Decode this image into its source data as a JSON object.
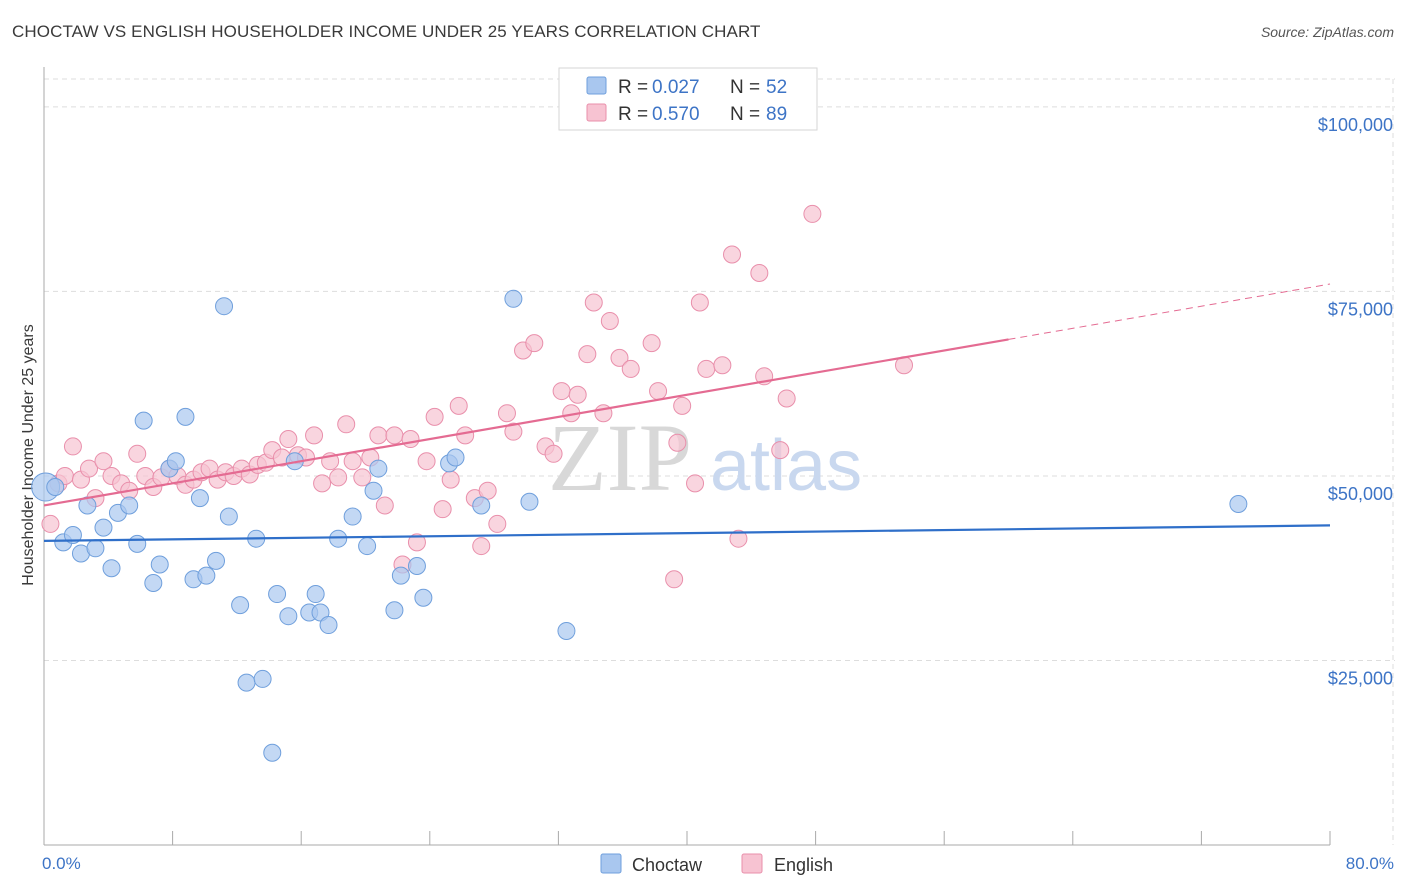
{
  "header": {
    "title": "CHOCTAW VS ENGLISH HOUSEHOLDER INCOME UNDER 25 YEARS CORRELATION CHART",
    "source": "Source: ZipAtlas.com"
  },
  "watermark": {
    "part1": "ZIP",
    "part2": "atlas"
  },
  "colors": {
    "choctaw_fill": "#a9c7ef",
    "choctaw_stroke": "#6f9fdc",
    "choctaw_line": "#2f6fc9",
    "english_fill": "#f7c3d2",
    "english_stroke": "#e98fab",
    "english_line": "#e46b92",
    "axis_text": "#3d74c6",
    "grid": "#dddddd"
  },
  "legend": {
    "rows": [
      {
        "r_label": "R =",
        "r_value": "0.027",
        "n_label": "N =",
        "n_value": "52"
      },
      {
        "r_label": "R =",
        "r_value": "0.570",
        "n_label": "N =",
        "n_value": "89"
      }
    ]
  },
  "chart_data": {
    "type": "scatter",
    "title": "CHOCTAW VS ENGLISH HOUSEHOLDER INCOME UNDER 25 YEARS CORRELATION CHART",
    "xlabel": "",
    "ylabel": "Householder Income Under 25 years",
    "xlim": [
      0,
      80
    ],
    "ylim": [
      0,
      105000
    ],
    "x_tick_labels": [
      "0.0%",
      "80.0%"
    ],
    "y_ticks": [
      25000,
      50000,
      75000,
      100000
    ],
    "y_tick_labels": [
      "$25,000",
      "$50,000",
      "$75,000",
      "$100,000"
    ],
    "grid": true,
    "series": [
      {
        "name": "Choctaw",
        "r": 0.027,
        "n": 52,
        "trend": {
          "x": [
            0,
            80
          ],
          "y": [
            41200,
            43300
          ]
        },
        "points": [
          [
            0.1,
            48500
          ],
          [
            0.7,
            48500
          ],
          [
            1.2,
            41000
          ],
          [
            1.8,
            42000
          ],
          [
            2.3,
            39500
          ],
          [
            2.7,
            46000
          ],
          [
            3.2,
            40200
          ],
          [
            3.7,
            43000
          ],
          [
            4.2,
            37500
          ],
          [
            4.6,
            45000
          ],
          [
            5.3,
            46000
          ],
          [
            5.8,
            40800
          ],
          [
            6.2,
            57500
          ],
          [
            6.8,
            35500
          ],
          [
            7.2,
            38000
          ],
          [
            7.8,
            51000
          ],
          [
            8.2,
            52000
          ],
          [
            8.8,
            58000
          ],
          [
            9.3,
            36000
          ],
          [
            9.7,
            47000
          ],
          [
            10.1,
            36500
          ],
          [
            10.7,
            38500
          ],
          [
            11.5,
            44500
          ],
          [
            11.2,
            73000
          ],
          [
            12.2,
            32500
          ],
          [
            12.6,
            22000
          ],
          [
            13.2,
            41500
          ],
          [
            13.6,
            22500
          ],
          [
            14.2,
            12500
          ],
          [
            14.5,
            34000
          ],
          [
            15.2,
            31000
          ],
          [
            15.6,
            52000
          ],
          [
            16.5,
            31500
          ],
          [
            16.9,
            34000
          ],
          [
            17.2,
            31500
          ],
          [
            17.7,
            29800
          ],
          [
            18.3,
            41500
          ],
          [
            19.2,
            44500
          ],
          [
            20.1,
            40500
          ],
          [
            20.5,
            48000
          ],
          [
            20.8,
            51000
          ],
          [
            21.8,
            31800
          ],
          [
            22.2,
            36500
          ],
          [
            23.2,
            37800
          ],
          [
            23.6,
            33500
          ],
          [
            25.2,
            51700
          ],
          [
            25.6,
            52500
          ],
          [
            27.2,
            46000
          ],
          [
            29.2,
            74000
          ],
          [
            30.2,
            46500
          ],
          [
            32.5,
            29000
          ],
          [
            74.3,
            46200
          ]
        ]
      },
      {
        "name": "English",
        "r": 0.57,
        "n": 89,
        "trend": {
          "x": [
            0,
            60
          ],
          "y": [
            46000,
            68500
          ],
          "dashed_x": [
            60,
            80
          ],
          "dashed_y": [
            68500,
            76000
          ]
        },
        "points": [
          [
            0.4,
            43500
          ],
          [
            0.9,
            49000
          ],
          [
            1.3,
            50000
          ],
          [
            1.8,
            54000
          ],
          [
            2.3,
            49500
          ],
          [
            2.8,
            51000
          ],
          [
            3.2,
            47000
          ],
          [
            3.7,
            52000
          ],
          [
            4.2,
            50000
          ],
          [
            4.8,
            49000
          ],
          [
            5.3,
            48000
          ],
          [
            5.8,
            53000
          ],
          [
            6.3,
            50000
          ],
          [
            6.8,
            48500
          ],
          [
            7.3,
            49800
          ],
          [
            7.8,
            51000
          ],
          [
            8.3,
            50000
          ],
          [
            8.8,
            48800
          ],
          [
            9.3,
            49500
          ],
          [
            9.8,
            50500
          ],
          [
            10.3,
            51000
          ],
          [
            10.8,
            49500
          ],
          [
            11.3,
            50500
          ],
          [
            11.8,
            50000
          ],
          [
            12.3,
            51000
          ],
          [
            12.8,
            50200
          ],
          [
            13.3,
            51500
          ],
          [
            13.8,
            51800
          ],
          [
            14.2,
            53500
          ],
          [
            14.8,
            52500
          ],
          [
            15.2,
            55000
          ],
          [
            15.8,
            52800
          ],
          [
            16.3,
            52500
          ],
          [
            16.8,
            55500
          ],
          [
            17.3,
            49000
          ],
          [
            17.8,
            52000
          ],
          [
            18.3,
            49800
          ],
          [
            18.8,
            57000
          ],
          [
            19.2,
            52000
          ],
          [
            19.8,
            49800
          ],
          [
            20.3,
            52500
          ],
          [
            20.8,
            55500
          ],
          [
            21.2,
            46000
          ],
          [
            21.8,
            55500
          ],
          [
            22.3,
            38000
          ],
          [
            22.8,
            55000
          ],
          [
            23.2,
            41000
          ],
          [
            23.8,
            52000
          ],
          [
            24.3,
            58000
          ],
          [
            24.8,
            45500
          ],
          [
            25.3,
            49500
          ],
          [
            25.8,
            59500
          ],
          [
            26.2,
            55500
          ],
          [
            26.8,
            47000
          ],
          [
            27.2,
            40500
          ],
          [
            27.6,
            48000
          ],
          [
            28.2,
            43500
          ],
          [
            28.8,
            58500
          ],
          [
            29.2,
            56000
          ],
          [
            29.8,
            67000
          ],
          [
            30.5,
            68000
          ],
          [
            31.2,
            54000
          ],
          [
            31.7,
            53000
          ],
          [
            32.2,
            61500
          ],
          [
            32.8,
            58500
          ],
          [
            33.2,
            61000
          ],
          [
            33.8,
            66500
          ],
          [
            34.2,
            73500
          ],
          [
            34.8,
            58500
          ],
          [
            35.2,
            71000
          ],
          [
            35.8,
            66000
          ],
          [
            36.5,
            64500
          ],
          [
            37.8,
            68000
          ],
          [
            38.2,
            61500
          ],
          [
            39.2,
            36000
          ],
          [
            39.4,
            54500
          ],
          [
            39.7,
            59500
          ],
          [
            40.5,
            49000
          ],
          [
            40.8,
            73500
          ],
          [
            41.2,
            64500
          ],
          [
            42.2,
            65000
          ],
          [
            42.8,
            80000
          ],
          [
            43.2,
            41500
          ],
          [
            44.5,
            77500
          ],
          [
            44.8,
            63500
          ],
          [
            45.8,
            53500
          ],
          [
            46.2,
            60500
          ],
          [
            47.8,
            85500
          ],
          [
            53.5,
            65000
          ]
        ]
      }
    ]
  },
  "bottom_legend": {
    "items": [
      "Choctaw",
      "English"
    ]
  }
}
